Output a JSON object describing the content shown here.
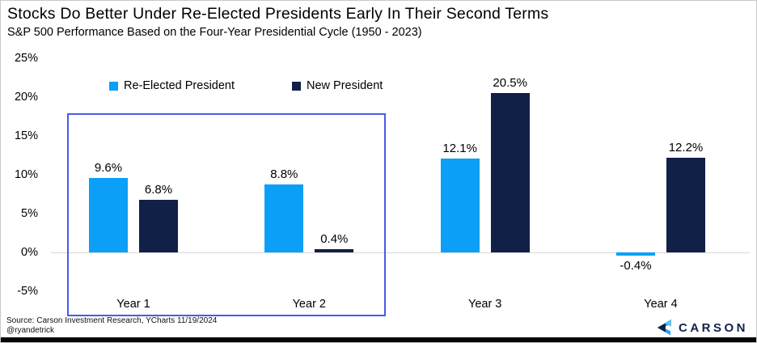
{
  "header": {
    "title": "Stocks Do Better Under Re-Elected Presidents Early In Their Second Terms",
    "subtitle": "S&P 500 Performance Based on the Four-Year Presidential Cycle (1950 - 2023)"
  },
  "chart_data": {
    "type": "bar",
    "title": "Stocks Do Better Under Re-Elected Presidents Early In Their Second Terms",
    "subtitle": "S&P 500 Performance Based on the Four-Year Presidential Cycle (1950 - 2023)",
    "categories": [
      "Year 1",
      "Year 2",
      "Year 3",
      "Year 4"
    ],
    "series": [
      {
        "name": "Re-Elected President",
        "color": "#0b9ff7",
        "values": [
          9.6,
          8.8,
          12.1,
          -0.4
        ],
        "labels": [
          "9.6%",
          "8.8%",
          "12.1%",
          "-0.4%"
        ]
      },
      {
        "name": "New President",
        "color": "#102047",
        "values": [
          6.8,
          0.4,
          20.5,
          12.2
        ],
        "labels": [
          "6.8%",
          "0.4%",
          "20.5%",
          "12.2%"
        ]
      }
    ],
    "y_axis": {
      "min": -5,
      "max": 25,
      "ticks": [
        {
          "label": "25%",
          "value": 25
        },
        {
          "label": "20%",
          "value": 20
        },
        {
          "label": "15%",
          "value": 15
        },
        {
          "label": "10%",
          "value": 10
        },
        {
          "label": "5%",
          "value": 5
        },
        {
          "label": "0%",
          "value": 0
        },
        {
          "label": "-5%",
          "value": -5
        }
      ]
    },
    "grid": false,
    "legend_position": "top-inside",
    "annotations": {
      "highlight_box_categories": [
        "Year 1",
        "Year 2"
      ],
      "highlight_box_color": "#4a5ae6"
    }
  },
  "footer": {
    "source_line1": "Source: Carson Investment Research, YCharts 11/19/2024",
    "source_line2": "@ryandetrick",
    "logo_text": "CARSON"
  },
  "colors": {
    "reelected_blue": "#0b9ff7",
    "new_president_navy": "#102047",
    "highlight_border": "#4a5ae6",
    "zero_line": "#d8d8d8",
    "logo_navy": "#0e2240",
    "logo_blue": "#2aa1ec"
  }
}
